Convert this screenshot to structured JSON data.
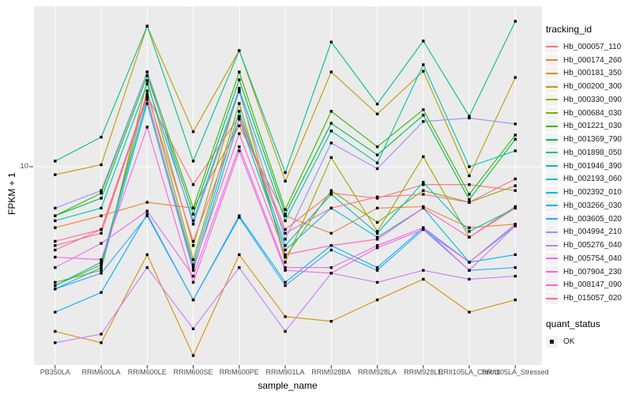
{
  "figure": {
    "background": "#FFFFFF",
    "panel_background": "#EBEBEB",
    "grid_color": "#FFFFFF",
    "tick_color": "#333333",
    "axis_text_color": "#4D4D4D",
    "point_color": "#000000",
    "legend_key_background": "#F2F2F2"
  },
  "y_axis": {
    "title": "FPKM + 1",
    "tick_label": "10"
  },
  "x_axis": {
    "title": "sample_name"
  },
  "legend": {
    "tracking_title": "tracking_id",
    "quant_title": "quant_status",
    "quant_item_label": "OK"
  },
  "chart_data": {
    "type": "line",
    "title": "",
    "xlabel": "sample_name",
    "ylabel": "FPKM + 1",
    "y_scale": "log10",
    "y_tick_labels": [
      "10"
    ],
    "ylim": [
      1.3,
      50
    ],
    "grid": true,
    "legend_position": "right",
    "legend_title": "tracking_id",
    "quant_status_legend": {
      "title": "quant_status",
      "items": [
        "OK"
      ]
    },
    "point_shape": "filled-square",
    "categories": [
      "PB350LA",
      "RRIM600LA",
      "RRIM600LE",
      "RRIM600SE",
      "RRIM600PE",
      "RRIM901LA",
      "RRIM928BA",
      "RRIM928LA",
      "RRIM928LE",
      "RRII105LA_Control",
      "RRII105LA_Stressed"
    ],
    "series": [
      {
        "name": "Hb_000057_110",
        "color": "#F8766D",
        "values": [
          4.4,
          5.0,
          20.9,
          8.3,
          16.9,
          5.2,
          7.6,
          7.2,
          8.3,
          8.3,
          7.8
        ]
      },
      {
        "name": "Hb_000174_260",
        "color": "#EA8331",
        "values": [
          5.3,
          6.0,
          6.9,
          6.5,
          15.3,
          6.0,
          5.0,
          6.5,
          6.6,
          5.3,
          5.5
        ]
      },
      {
        "name": "Hb_000181_350",
        "color": "#D89000",
        "values": [
          1.8,
          1.6,
          4.0,
          1.4,
          4.0,
          2.1,
          2.0,
          2.5,
          3.1,
          2.2,
          2.5
        ]
      },
      {
        "name": "Hb_000200_300",
        "color": "#C09B00",
        "values": [
          9.2,
          10.2,
          43.2,
          14.4,
          33.5,
          8.6,
          26.8,
          17.3,
          27.0,
          9.1,
          25.3
        ]
      },
      {
        "name": "Hb_000330_090",
        "color": "#A3A500",
        "values": [
          3.0,
          3.4,
          24.5,
          4.4,
          22.6,
          3.7,
          11.0,
          5.1,
          11.1,
          4.8,
          6.6
        ]
      },
      {
        "name": "Hb_000684_030",
        "color": "#7CAE00",
        "values": [
          2.9,
          3.6,
          22.0,
          3.8,
          19.3,
          3.9,
          7.8,
          5.6,
          7.8,
          6.9,
          8.2
        ]
      },
      {
        "name": "Hb_001221_030",
        "color": "#39B600",
        "values": [
          6.0,
          7.6,
          26.8,
          6.5,
          26.8,
          6.4,
          17.8,
          12.3,
          18.1,
          7.5,
          13.9
        ]
      },
      {
        "name": "Hb_001369_790",
        "color": "#00BB4E",
        "values": [
          6.0,
          7.2,
          25.8,
          6.1,
          24.7,
          6.1,
          15.7,
          11.3,
          17.1,
          7.1,
          13.3
        ]
      },
      {
        "name": "Hb_001898_050",
        "color": "#00C087",
        "values": [
          10.6,
          13.6,
          43.2,
          10.6,
          33.5,
          9.4,
          36.6,
          19.2,
          37.0,
          16.9,
          45.4
        ]
      },
      {
        "name": "Hb_001946_390",
        "color": "#00C0AF",
        "values": [
          5.7,
          6.5,
          23.7,
          5.7,
          22.4,
          5.7,
          14.5,
          10.4,
          28.9,
          10.0,
          11.8
        ]
      },
      {
        "name": "Hb_002193_060",
        "color": "#00BFC4",
        "values": [
          2.9,
          3.7,
          20.1,
          3.6,
          17.8,
          4.4,
          7.5,
          5.0,
          8.5,
          5.1,
          6.5
        ]
      },
      {
        "name": "Hb_002392_010",
        "color": "#00BAE0",
        "values": [
          2.8,
          3.5,
          19.3,
          3.4,
          16.4,
          4.2,
          6.5,
          4.8,
          6.5,
          3.7,
          5.4
        ]
      },
      {
        "name": "Hb_003266_030",
        "color": "#00B0F6",
        "values": [
          2.2,
          2.7,
          6.1,
          2.5,
          6.0,
          3.0,
          4.4,
          3.5,
          5.3,
          3.7,
          4.0
        ]
      },
      {
        "name": "Hb_003605_020",
        "color": "#35A2FF",
        "values": [
          2.8,
          3.3,
          6.0,
          2.5,
          5.9,
          2.9,
          4.2,
          3.4,
          5.2,
          3.4,
          3.5
        ]
      },
      {
        "name": "Hb_004994_210",
        "color": "#9590FF",
        "values": [
          6.5,
          7.8,
          26.8,
          5.5,
          21.8,
          4.7,
          12.8,
          9.8,
          16.0,
          16.6,
          15.6
        ]
      },
      {
        "name": "Hb_005276_040",
        "color": "#C77CFF",
        "values": [
          1.6,
          1.75,
          3.5,
          1.85,
          3.5,
          1.8,
          3.3,
          3.0,
          3.4,
          3.1,
          3.2
        ]
      },
      {
        "name": "Hb_005754_040",
        "color": "#E76BF3",
        "values": [
          3.5,
          4.5,
          6.3,
          3.2,
          12.3,
          3.5,
          3.5,
          4.4,
          5.3,
          3.4,
          5.4
        ]
      },
      {
        "name": "Hb_007904_230",
        "color": "#FA62DB",
        "values": [
          3.9,
          3.8,
          15.1,
          3.0,
          11.8,
          3.4,
          3.3,
          4.3,
          5.2,
          3.7,
          5.5
        ]
      },
      {
        "name": "Hb_008147_090",
        "color": "#FF62BC",
        "values": [
          4.2,
          5.2,
          20.4,
          3.5,
          14.1,
          4.0,
          4.4,
          4.7,
          6.5,
          4.8,
          6.5
        ]
      },
      {
        "name": "Hb_015057_020",
        "color": "#FF6A98",
        "values": [
          4.6,
          5.2,
          21.3,
          4.6,
          16.4,
          5.0,
          6.5,
          7.3,
          7.5,
          6.9,
          8.8
        ]
      }
    ]
  }
}
